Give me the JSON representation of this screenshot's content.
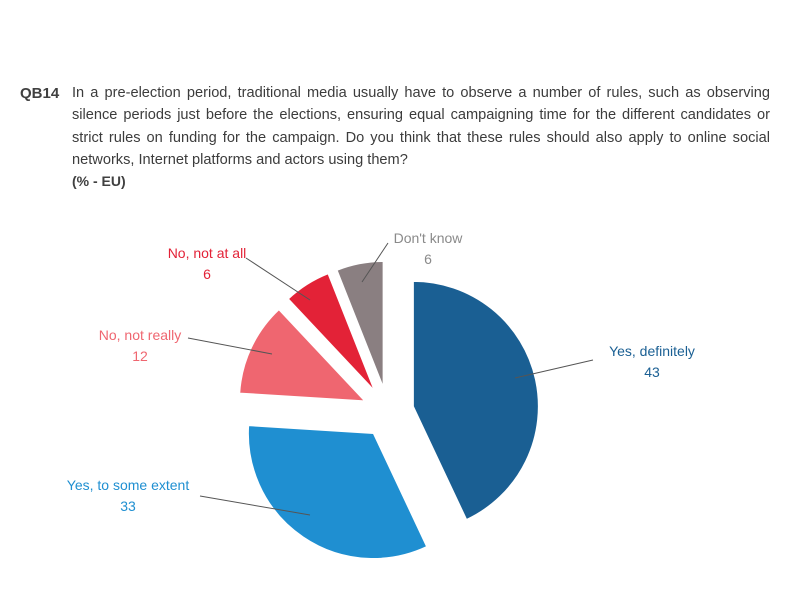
{
  "question": {
    "id": "QB14",
    "text": "In a pre-election period, traditional media usually have to observe a number of rules, such as observing silence periods just before the elections, ensuring equal campaigning time for the different candidates or strict rules on funding for the campaign. Do you think that these rules should also apply to online social networks, Internet platforms and actors using them?",
    "base": "(% - EU)"
  },
  "chart_data": {
    "type": "pie",
    "title": "",
    "slices": [
      {
        "label": "Yes, definitely",
        "value": 43,
        "color": "#1a5f93"
      },
      {
        "label": "Yes, to some extent",
        "value": 33,
        "color": "#1f8fd1"
      },
      {
        "label": "No, not really",
        "value": 12,
        "color": "#ef6670"
      },
      {
        "label": "No, not at all",
        "value": 6,
        "color": "#e32237"
      },
      {
        "label": "Don't know",
        "value": 6,
        "color": "#8a7f81"
      }
    ],
    "label_colors": {
      "Yes, definitely": "#1a5f93",
      "Yes, to some extent": "#1f8fd1",
      "No, not really": "#ef6670",
      "No, not at all": "#e32237",
      "Don't know": "#8a8a8a"
    },
    "exploded": true,
    "legend": "none"
  }
}
